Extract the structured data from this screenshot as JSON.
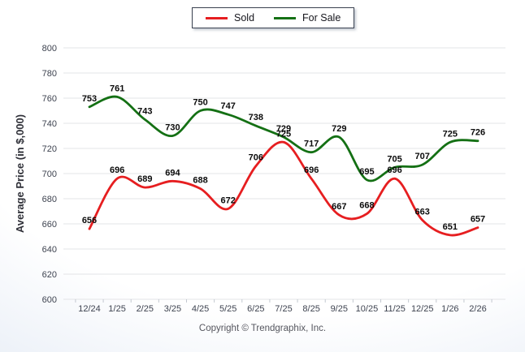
{
  "footer": "Copyright © Trendgraphix, Inc.",
  "chart_data": {
    "type": "line",
    "title": "",
    "xlabel": "",
    "ylabel": "Average Price (in $,000)",
    "ylim": [
      600,
      800
    ],
    "yticks": [
      800,
      780,
      760,
      740,
      720,
      700,
      680,
      660,
      640,
      620,
      600
    ],
    "grid": true,
    "legend_position": "top-center",
    "smooth": true,
    "categories": [
      "12/24",
      "1/25",
      "2/25",
      "3/25",
      "4/25",
      "5/25",
      "6/25",
      "7/25",
      "8/25",
      "9/25",
      "10/25",
      "11/25",
      "12/25",
      "1/26",
      "2/26"
    ],
    "series": [
      {
        "name": "Sold",
        "color": "#e61e20",
        "values": [
          656,
          696,
          689,
          694,
          688,
          672,
          706,
          725,
          696,
          667,
          668,
          696,
          663,
          651,
          657
        ]
      },
      {
        "name": "For Sale",
        "color": "#147014",
        "values": [
          753,
          761,
          743,
          730,
          750,
          747,
          738,
          729,
          717,
          729,
          695,
          705,
          707,
          725,
          726
        ]
      }
    ]
  }
}
